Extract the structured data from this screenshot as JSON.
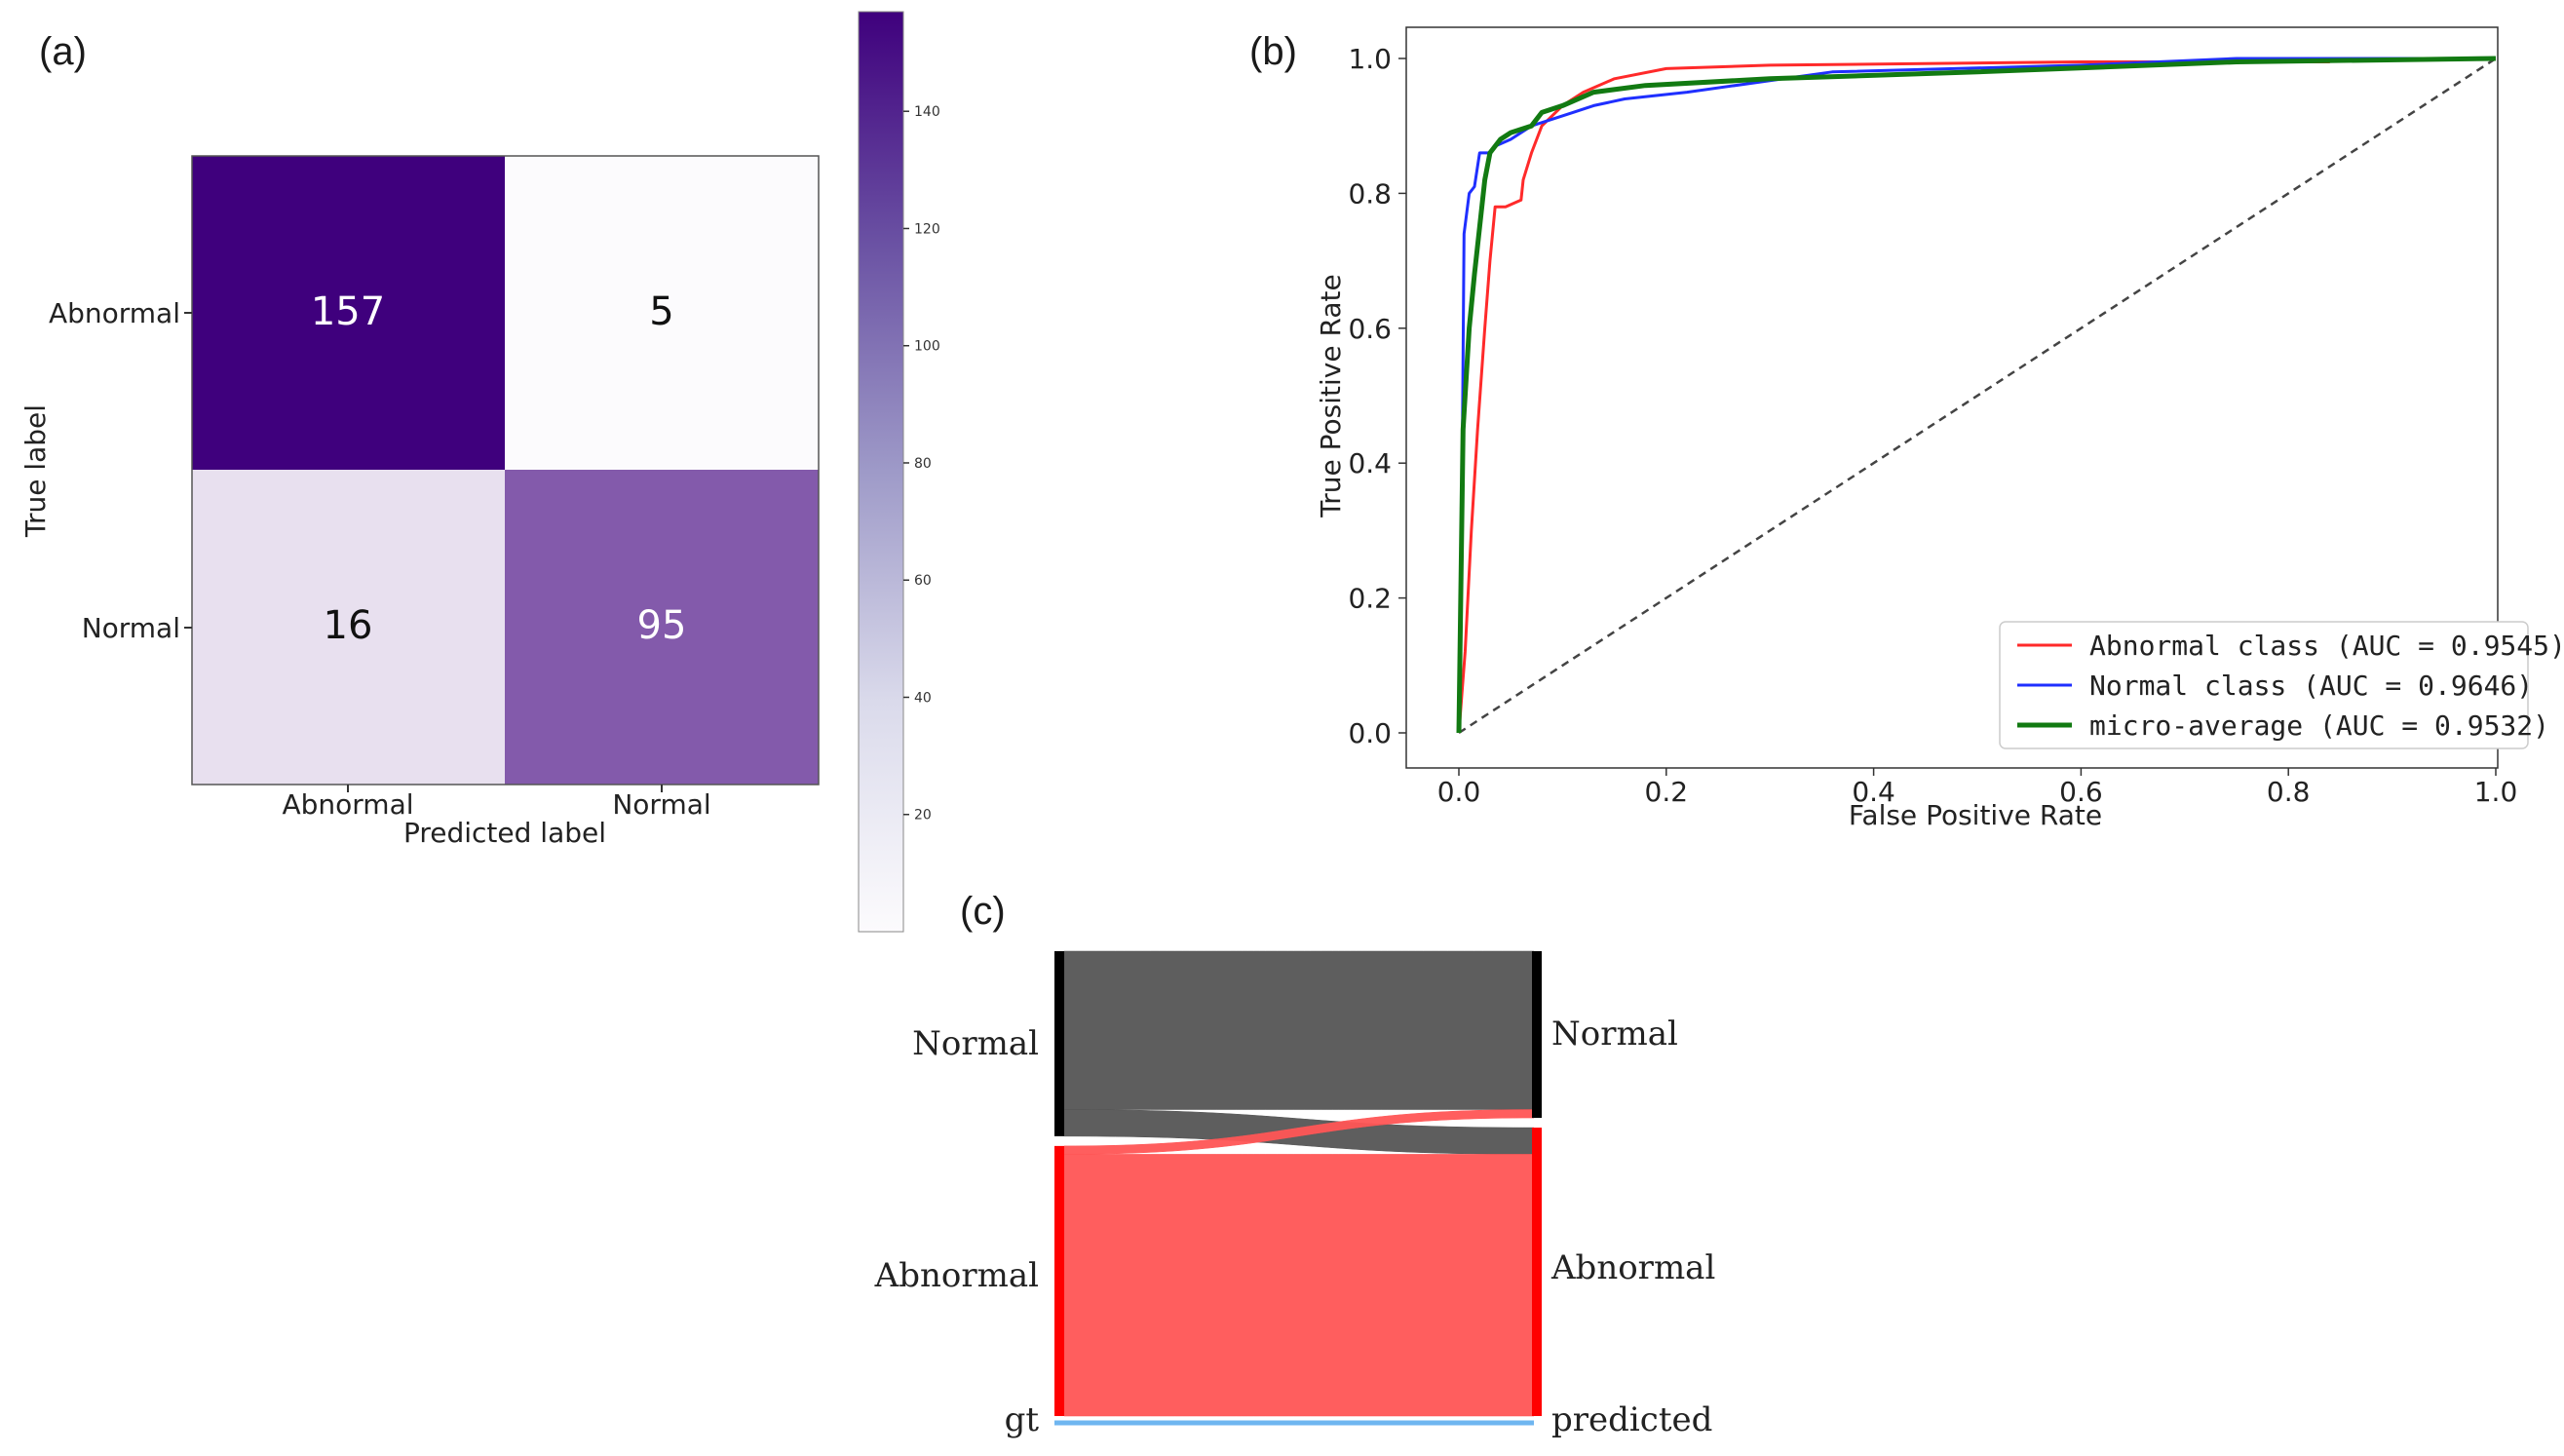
{
  "panels": {
    "a_label": "(a)",
    "b_label": "(b)",
    "c_label": "(c)"
  },
  "chart_data": [
    {
      "type": "heatmap",
      "panel": "(a)",
      "ylabel": "True label",
      "xlabel": "Predicted label",
      "rows": [
        "Abnormal",
        "Normal"
      ],
      "cols": [
        "Abnormal",
        "Normal"
      ],
      "values": [
        [
          157,
          5
        ],
        [
          16,
          95
        ]
      ],
      "colormap": "Purples",
      "vmin": 5,
      "vmax": 157,
      "colorbar_ticks": [
        20,
        40,
        60,
        80,
        100,
        120,
        140
      ],
      "colors": {
        "max": "#3f007d",
        "min": "#fcfbfd"
      }
    },
    {
      "type": "line",
      "panel": "(b)",
      "xlabel": "False Positive Rate",
      "ylabel": "True Positive Rate",
      "xlim": [
        0.0,
        1.0
      ],
      "ylim": [
        0.0,
        1.0
      ],
      "xticks": [
        "0.0",
        "0.2",
        "0.4",
        "0.6",
        "0.8",
        "1.0"
      ],
      "yticks": [
        "0.0",
        "0.2",
        "0.4",
        "0.6",
        "0.8",
        "1.0"
      ],
      "legend_position": "lower-right",
      "series": [
        {
          "name": "Abnormal class (AUC = 0.9545)",
          "color": "#ff2a2a",
          "x": [
            0,
            0.006,
            0.012,
            0.018,
            0.025,
            0.03,
            0.035,
            0.045,
            0.06,
            0.062,
            0.07,
            0.08,
            0.1,
            0.12,
            0.15,
            0.2,
            0.3,
            0.6,
            0.84
          ],
          "y": [
            0,
            0.12,
            0.3,
            0.45,
            0.6,
            0.7,
            0.78,
            0.78,
            0.79,
            0.82,
            0.86,
            0.9,
            0.93,
            0.95,
            0.97,
            0.985,
            0.99,
            0.995,
            0.995
          ]
        },
        {
          "name": "Normal class (AUC = 0.9646)",
          "color": "#1f2fff",
          "x": [
            0,
            0.002,
            0.005,
            0.01,
            0.015,
            0.02,
            0.03,
            0.035,
            0.05,
            0.07,
            0.09,
            0.11,
            0.13,
            0.16,
            0.22,
            0.36,
            0.6,
            0.75,
            1.0
          ],
          "y": [
            0,
            0.16,
            0.74,
            0.8,
            0.81,
            0.86,
            0.86,
            0.87,
            0.88,
            0.9,
            0.91,
            0.92,
            0.93,
            0.94,
            0.95,
            0.98,
            0.99,
            1.0,
            1.0
          ]
        },
        {
          "name": "micro-average (AUC = 0.9532)",
          "color": "#127a12",
          "x": [
            0,
            0.004,
            0.01,
            0.015,
            0.02,
            0.025,
            0.03,
            0.04,
            0.05,
            0.07,
            0.08,
            0.1,
            0.13,
            0.18,
            0.3,
            0.5,
            0.75,
            1.0
          ],
          "y": [
            0,
            0.45,
            0.6,
            0.68,
            0.75,
            0.82,
            0.86,
            0.88,
            0.89,
            0.9,
            0.92,
            0.93,
            0.95,
            0.96,
            0.97,
            0.98,
            0.995,
            1.0
          ]
        }
      ],
      "reference_line": {
        "style": "dashed",
        "color": "#444444",
        "x": [
          0,
          1
        ],
        "y": [
          0,
          1
        ]
      }
    },
    {
      "type": "sankey",
      "panel": "(c)",
      "left_axis_label": "gt",
      "right_axis_label": "predicted",
      "left_nodes": [
        {
          "label": "Normal",
          "value": 111,
          "color": "#000000"
        },
        {
          "label": "Abnormal",
          "value": 162,
          "color": "#ff0000"
        }
      ],
      "right_nodes": [
        {
          "label": "Normal",
          "value": 100,
          "color": "#000000"
        },
        {
          "label": "Abnormal",
          "value": 173,
          "color": "#ff0000"
        }
      ],
      "flows": [
        {
          "from": "Normal",
          "to": "Normal",
          "value": 95,
          "color": "#555555"
        },
        {
          "from": "Normal",
          "to": "Abnormal",
          "value": 16,
          "color": "#555555"
        },
        {
          "from": "Abnormal",
          "to": "Normal",
          "value": 5,
          "color": "#ff5555"
        },
        {
          "from": "Abnormal",
          "to": "Abnormal",
          "value": 157,
          "color": "#ff5555"
        }
      ]
    }
  ]
}
